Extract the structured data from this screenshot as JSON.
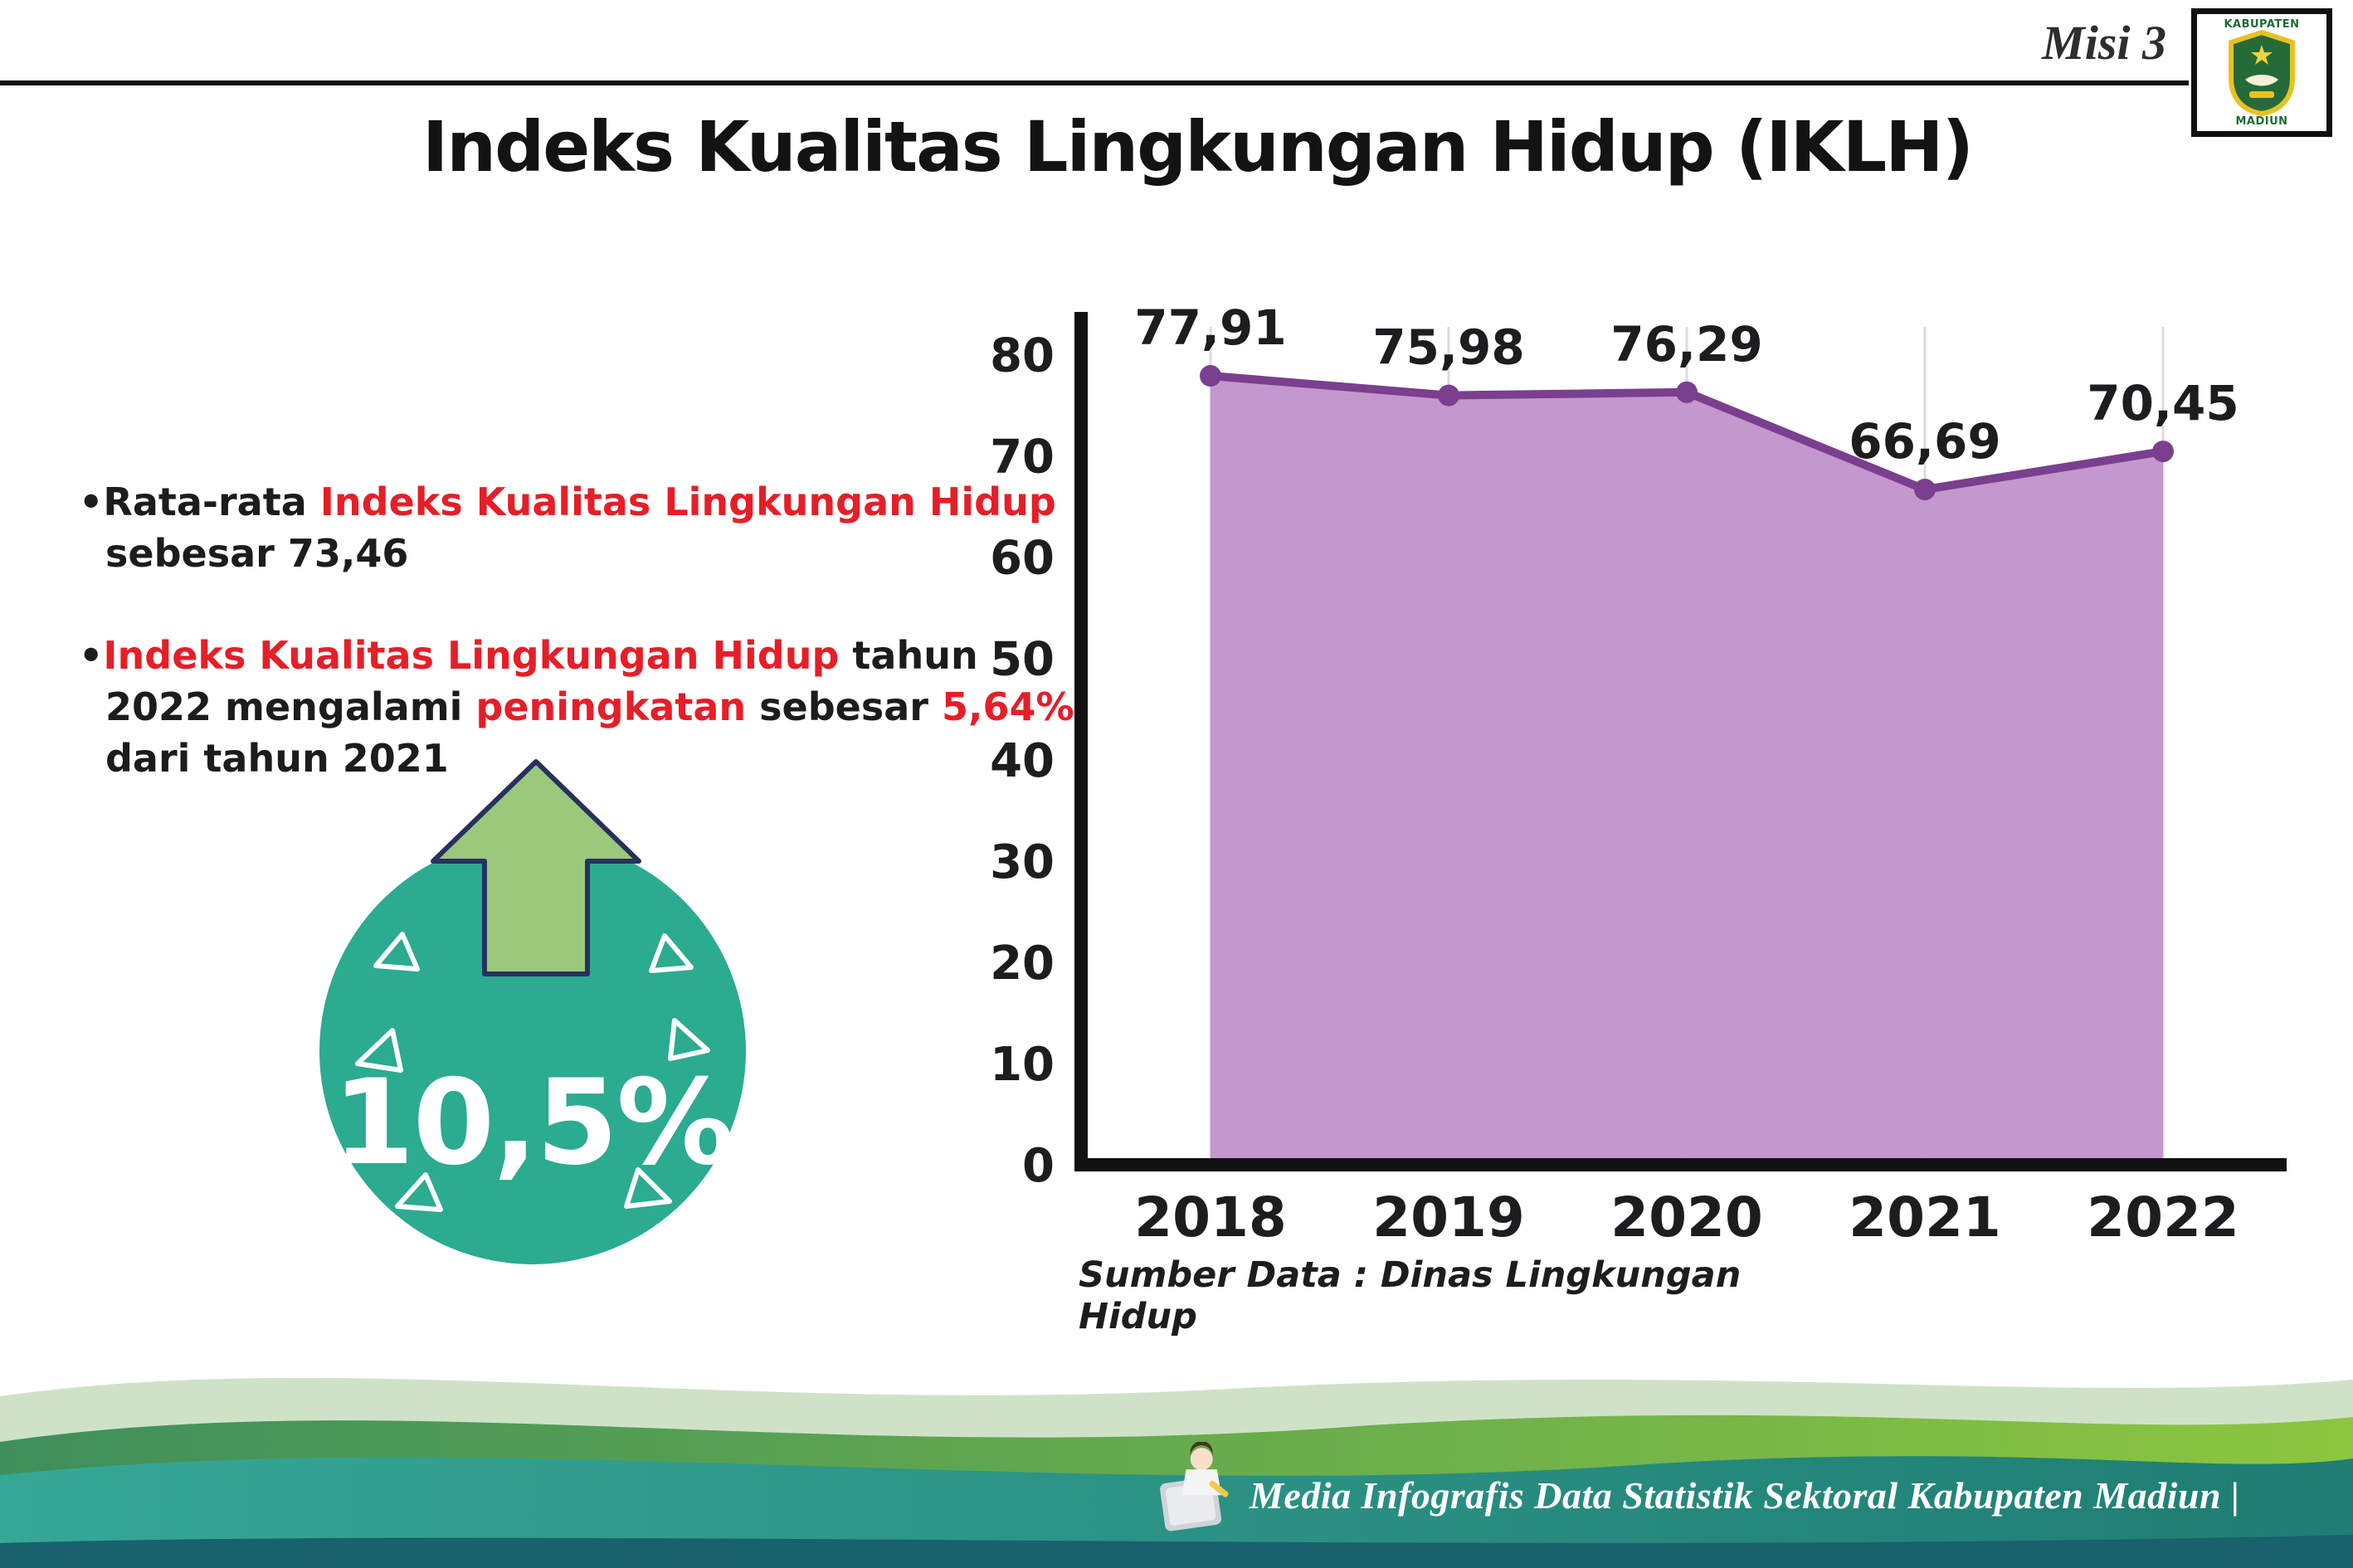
{
  "page": {
    "misi_label": "Misi 3",
    "title": "Indeks Kualitas Lingkungan Hidup (IKLH)",
    "source_note": "Sumber Data : Dinas Lingkungan Hidup",
    "footer_text": "Media Infografis Data Statistik Sektoral Kabupaten Madiun |"
  },
  "logo": {
    "top": "KABUPATEN",
    "bottom": "MADIUN"
  },
  "bullets": {
    "bullet_char": "•",
    "b1": {
      "p1": "Rata-rata ",
      "p2": "Indeks Kualitas Lingkungan Hidup",
      "p3": " sebesar 73,46"
    },
    "b2": {
      "p1": "Indeks Kualitas Lingkungan Hidup",
      "p2": " tahun 2022 mengalami ",
      "p3": "peningkatan",
      "p4": " sebesar ",
      "p5": "5,64%",
      "p6": " dari tahun 2021"
    }
  },
  "badge": {
    "value": "10,5%"
  },
  "chart_data": {
    "type": "area",
    "categories": [
      "2018",
      "2019",
      "2020",
      "2021",
      "2022"
    ],
    "values": [
      77.91,
      75.98,
      76.29,
      66.69,
      70.45
    ],
    "value_labels": [
      "77,91",
      "75,98",
      "76,29",
      "66,69",
      "70,45"
    ],
    "yticks": [
      0,
      10,
      20,
      30,
      40,
      50,
      60,
      70,
      80
    ],
    "ylim": [
      0,
      80
    ],
    "grid": "vertical-light",
    "legend": "none",
    "title": "",
    "xlabel": "",
    "ylabel": "",
    "colors": {
      "area": "#c191ca",
      "line": "#7a3f8e",
      "point": "#7a3f8e",
      "axis": "#111111",
      "label": "#1d1d1f",
      "grid": "#dcdcdc"
    }
  }
}
